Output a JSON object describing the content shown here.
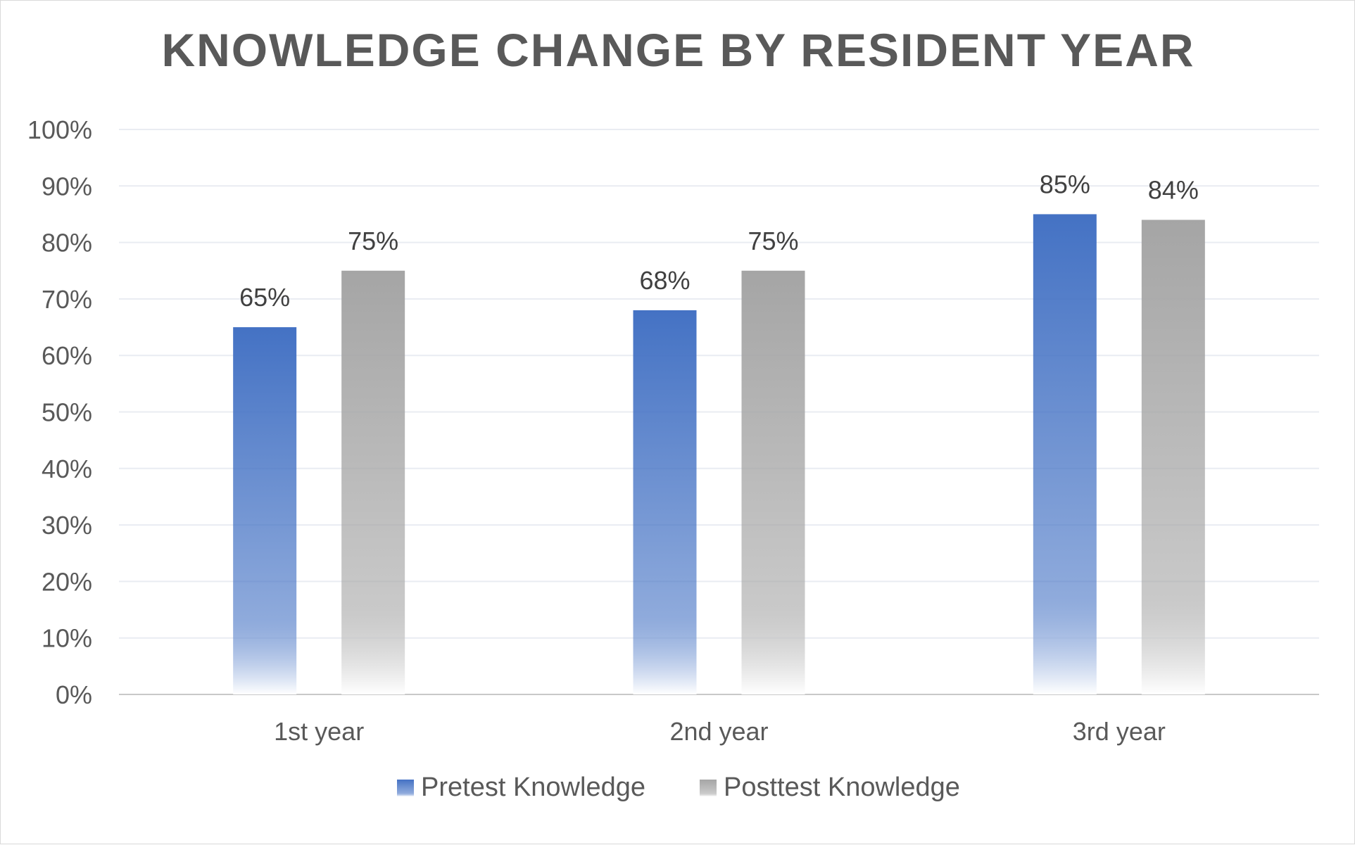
{
  "chart_data": {
    "type": "bar",
    "title": "KNOWLEDGE CHANGE BY RESIDENT YEAR",
    "categories": [
      "1st year",
      "2nd year",
      "3rd year"
    ],
    "series": [
      {
        "name": "Pretest Knowledge",
        "values": [
          65,
          68,
          85
        ],
        "labels": [
          "65%",
          "68%",
          "85%"
        ],
        "color": "#4472c4"
      },
      {
        "name": "Posttest Knowledge",
        "values": [
          75,
          75,
          84
        ],
        "labels": [
          "75%",
          "75%",
          "84%"
        ],
        "color": "#a5a5a5"
      }
    ],
    "yticks": [
      "0%",
      "10%",
      "20%",
      "30%",
      "40%",
      "50%",
      "60%",
      "70%",
      "80%",
      "90%",
      "100%"
    ],
    "ylim": [
      0,
      100
    ],
    "grid": true,
    "legend_position": "bottom"
  }
}
